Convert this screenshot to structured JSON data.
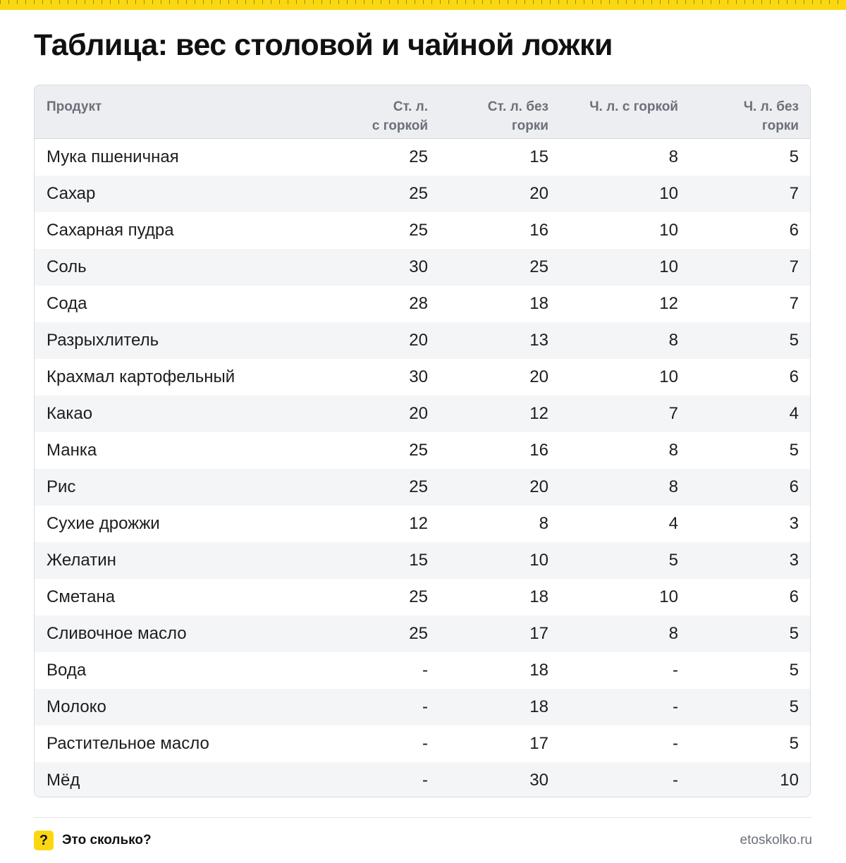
{
  "title": "Таблица: вес столовой и чайной ложки",
  "table": {
    "headers": {
      "product": "Продукт",
      "tbsp_heaped": [
        "Ст. л.",
        "с горкой"
      ],
      "tbsp_level": [
        "Ст. л. без",
        "горки"
      ],
      "tsp_heaped": [
        "Ч. л. с горкой"
      ],
      "tsp_level": [
        "Ч. л. без",
        "горки"
      ]
    },
    "rows": [
      {
        "product": "Мука пшеничная",
        "tbsp_heaped": "25",
        "tbsp_level": "15",
        "tsp_heaped": "8",
        "tsp_level": "5"
      },
      {
        "product": "Сахар",
        "tbsp_heaped": "25",
        "tbsp_level": "20",
        "tsp_heaped": "10",
        "tsp_level": "7"
      },
      {
        "product": "Сахарная пудра",
        "tbsp_heaped": "25",
        "tbsp_level": "16",
        "tsp_heaped": "10",
        "tsp_level": "6"
      },
      {
        "product": "Соль",
        "tbsp_heaped": "30",
        "tbsp_level": "25",
        "tsp_heaped": "10",
        "tsp_level": "7"
      },
      {
        "product": "Сода",
        "tbsp_heaped": "28",
        "tbsp_level": "18",
        "tsp_heaped": "12",
        "tsp_level": "7"
      },
      {
        "product": "Разрыхлитель",
        "tbsp_heaped": "20",
        "tbsp_level": "13",
        "tsp_heaped": "8",
        "tsp_level": "5"
      },
      {
        "product": "Крахмал картофельный",
        "tbsp_heaped": "30",
        "tbsp_level": "20",
        "tsp_heaped": "10",
        "tsp_level": "6"
      },
      {
        "product": "Какао",
        "tbsp_heaped": "20",
        "tbsp_level": "12",
        "tsp_heaped": "7",
        "tsp_level": "4"
      },
      {
        "product": "Манка",
        "tbsp_heaped": "25",
        "tbsp_level": "16",
        "tsp_heaped": "8",
        "tsp_level": "5"
      },
      {
        "product": "Рис",
        "tbsp_heaped": "25",
        "tbsp_level": "20",
        "tsp_heaped": "8",
        "tsp_level": "6"
      },
      {
        "product": "Сухие дрожжи",
        "tbsp_heaped": "12",
        "tbsp_level": "8",
        "tsp_heaped": "4",
        "tsp_level": "3"
      },
      {
        "product": "Желатин",
        "tbsp_heaped": "15",
        "tbsp_level": "10",
        "tsp_heaped": "5",
        "tsp_level": "3"
      },
      {
        "product": "Сметана",
        "tbsp_heaped": "25",
        "tbsp_level": "18",
        "tsp_heaped": "10",
        "tsp_level": "6"
      },
      {
        "product": "Сливочное масло",
        "tbsp_heaped": "25",
        "tbsp_level": "17",
        "tsp_heaped": "8",
        "tsp_level": "5"
      },
      {
        "product": "Вода",
        "tbsp_heaped": "-",
        "tbsp_level": "18",
        "tsp_heaped": "-",
        "tsp_level": "5"
      },
      {
        "product": "Молоко",
        "tbsp_heaped": "-",
        "tbsp_level": "18",
        "tsp_heaped": "-",
        "tsp_level": "5"
      },
      {
        "product": "Растительное масло",
        "tbsp_heaped": "-",
        "tbsp_level": "17",
        "tsp_heaped": "-",
        "tsp_level": "5"
      },
      {
        "product": "Мёд",
        "tbsp_heaped": "-",
        "tbsp_level": "30",
        "tsp_heaped": "-",
        "tsp_level": "10"
      }
    ]
  },
  "footer": {
    "badge": "?",
    "brand": "Это сколько?",
    "site": "etoskolko.ru"
  },
  "colors": {
    "accent": "#fbd712",
    "header_bg": "#eceef1",
    "zebra_bg": "#f4f5f7",
    "header_text": "#6b7079"
  }
}
